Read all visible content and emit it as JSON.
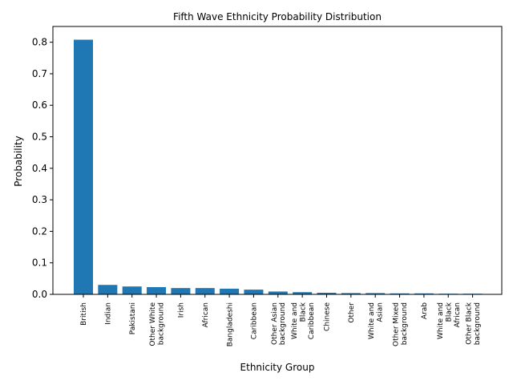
{
  "chart_data": {
    "type": "bar",
    "title": "Fifth Wave Ethnicity Probability Distribution",
    "xlabel": "Ethnicity Group",
    "ylabel": "Probability",
    "ylim": [
      0,
      0.85
    ],
    "yticks": [
      "0.0",
      "0.1",
      "0.2",
      "0.3",
      "0.4",
      "0.5",
      "0.6",
      "0.7",
      "0.8"
    ],
    "grid": false,
    "bar_color": "#1f77b4",
    "categories": [
      "British",
      "Indian",
      "Pakistani",
      "Other White background",
      "Irish",
      "African",
      "Bangladeshi",
      "Caribbean",
      "Other Asian background",
      "White and Black Caribbean",
      "Chinese",
      "Other",
      "White and Asian",
      "Other Mixed background",
      "Arab",
      "White and Black African",
      "Other Black background"
    ],
    "category_label_lines": [
      [
        "British"
      ],
      [
        "Indian"
      ],
      [
        "Pakistani"
      ],
      [
        "Other White",
        "background"
      ],
      [
        "Irish"
      ],
      [
        "African"
      ],
      [
        "Bangladeshi"
      ],
      [
        "Caribbean"
      ],
      [
        "Other Asian",
        "background"
      ],
      [
        "White and",
        "Black",
        "Caribbean"
      ],
      [
        "Chinese"
      ],
      [
        "Other"
      ],
      [
        "White and",
        "Asian"
      ],
      [
        "Other Mixed",
        "background"
      ],
      [
        "Arab"
      ],
      [
        "White and",
        "Black",
        "African"
      ],
      [
        "Other Black",
        "background"
      ]
    ],
    "values": [
      0.808,
      0.03,
      0.025,
      0.023,
      0.02,
      0.02,
      0.018,
      0.015,
      0.009,
      0.007,
      0.005,
      0.004,
      0.004,
      0.003,
      0.003,
      0.002,
      0.002
    ]
  }
}
